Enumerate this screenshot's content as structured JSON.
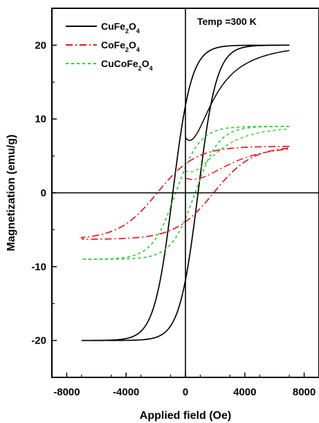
{
  "chart_data": {
    "type": "line",
    "title": "",
    "xlabel": "Applied field (Oe)",
    "ylabel": "Magnetization (emu/g)",
    "xlim": [
      -9000,
      9000
    ],
    "ylim": [
      -25,
      25
    ],
    "xticks": [
      -8000,
      -4000,
      0,
      4000,
      8000
    ],
    "yticks": [
      -20,
      -10,
      0,
      10,
      20
    ],
    "grid": false,
    "legend_position": "top-left",
    "annotation": "Temp =300 K",
    "series": [
      {
        "name_base": "CuFe",
        "sub1": "2",
        "name_mid": "O",
        "sub2": "4",
        "color": "#000000",
        "dash": "solid",
        "Ms": 20.0,
        "Mr": 11.0,
        "Hc": 850,
        "a": 1250,
        "Hmax": 7000,
        "initial_from": 7.5
      },
      {
        "name_base": "CoFe",
        "sub1": "2",
        "name_mid": "O",
        "sub2": "4",
        "color": "#e8141b",
        "dash": "dashdot",
        "Ms": 6.3,
        "Mr": 2.0,
        "Hc": 1900,
        "a": 2600,
        "Hmax": 7000,
        "initial_from": 2.0
      },
      {
        "name_base": "CuCoFe",
        "sub1": "2",
        "name_mid": "O",
        "sub2": "4",
        "color": "#2ed12e",
        "dash": "dotted",
        "Ms": 9.0,
        "Mr": 3.0,
        "Hc": 650,
        "a": 1600,
        "Hmax": 7000,
        "initial_from": 3.0
      }
    ]
  }
}
